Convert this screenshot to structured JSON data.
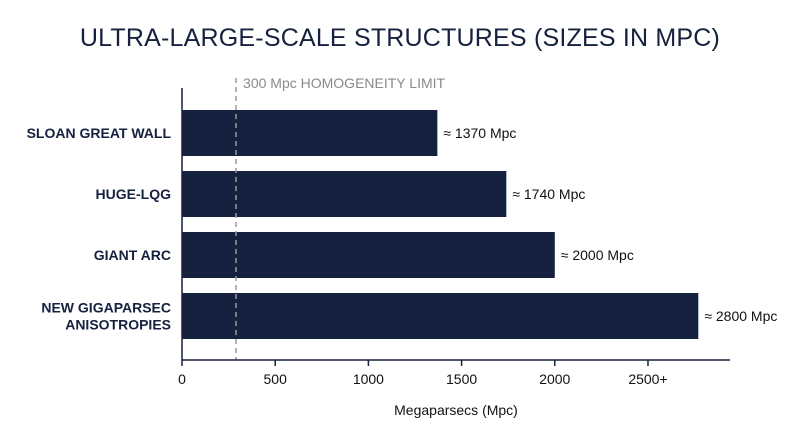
{
  "chart_data": {
    "type": "bar",
    "orientation": "horizontal",
    "title": "ULTRA-LARGE-SCALE STRUCTURES (SIZES IN MPC)",
    "xlabel": "Megaparsecs (Mpc)",
    "ylabel": "",
    "categories": [
      "SLOAN GREAT WALL",
      "HUGE-LQG",
      "GIANT ARC",
      "NEW GIGAPARSEC ANISOTROPIES"
    ],
    "category_lines": [
      [
        "SLOAN GREAT WALL"
      ],
      [
        "HUGE-LQG"
      ],
      [
        "GIANT ARC"
      ],
      [
        "NEW GIGAPARSEC",
        "ANISOTROPIES"
      ]
    ],
    "values": [
      1370,
      1740,
      2000,
      2770
    ],
    "value_labels": [
      "≈ 1370 Mpc",
      "≈ 1740 Mpc",
      "≈ 2000 Mpc",
      "≈ 2800 Mpc"
    ],
    "xlim": [
      0,
      2940
    ],
    "xticks": [
      0,
      500,
      1000,
      1500,
      2000,
      2500
    ],
    "xtick_labels": [
      "0",
      "500",
      "1000",
      "1500",
      "2000",
      "2500+"
    ],
    "reference_line": {
      "value": 290,
      "label": "300 Mpc HOMOGENEITY LIMIT"
    },
    "grid": false,
    "legend": "none",
    "colors": {
      "bar": "#16203f",
      "axis": "#16203f",
      "reference": "#9a9a9a",
      "title": "#16203f"
    }
  }
}
